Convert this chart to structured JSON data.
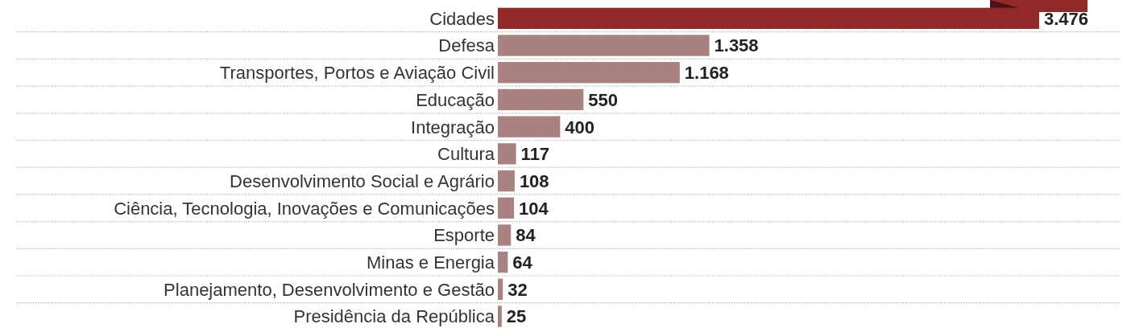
{
  "chart_data": {
    "type": "bar",
    "orientation": "horizontal",
    "categories": [
      "Cidades",
      "Defesa",
      "Transportes, Portos e Aviação Civil",
      "Educação",
      "Integração",
      "Cultura",
      "Desenvolvimento Social e Agrário",
      "Ciência, Tecnologia, Inovações e Comunicações",
      "Esporte",
      "Minas e Energia",
      "Planejamento, Desenvolvimento e Gestão",
      "Presidência da República"
    ],
    "values": [
      3476,
      1358,
      1168,
      550,
      400,
      117,
      108,
      104,
      84,
      64,
      32,
      25
    ],
    "value_labels": [
      "3.476",
      "1.358",
      "1.168",
      "550",
      "400",
      "117",
      "108",
      "104",
      "84",
      "64",
      "32",
      "25"
    ],
    "colors": [
      "#922a2a",
      "#a88280",
      "#a88280",
      "#a88280",
      "#a88280",
      "#a88280",
      "#a88280",
      "#a88280",
      "#a88280",
      "#a88280",
      "#a88280",
      "#a88280"
    ],
    "grid": "y"
  }
}
